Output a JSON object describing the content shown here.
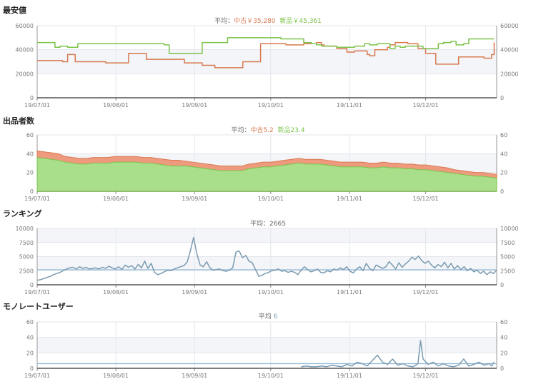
{
  "panels": [
    {
      "id": "price",
      "title": "最安値",
      "avg_label": "平均：",
      "avg_parts": [
        {
          "label": "中古￥35,280",
          "cls": "used"
        },
        {
          "label": "新品￥45,361",
          "cls": "new"
        }
      ]
    },
    {
      "id": "sellers",
      "title": "出品者数",
      "avg_label": "平均：",
      "avg_parts": [
        {
          "label": "中古5.2",
          "cls": "used"
        },
        {
          "label": "新品23.4",
          "cls": "new"
        }
      ]
    },
    {
      "id": "ranking",
      "title": "ランキング",
      "avg_label": "平均：",
      "avg_parts": [
        {
          "label": "2665",
          "cls": "plain"
        }
      ]
    },
    {
      "id": "monorate",
      "title": "モノレートユーザー",
      "avg_label": "平均",
      "avg_parts": [
        {
          "label": "6",
          "cls": "num"
        }
      ]
    }
  ],
  "colors": {
    "used": "#d87a4f",
    "new": "#7cc34a",
    "rank": "#7a9bb0",
    "used_fill": "#ee9a7e",
    "new_fill": "#a9de8a"
  },
  "chart_data": [
    {
      "type": "line",
      "title": "最安値",
      "x_tick_labels": [
        "19/07/01",
        "19/08/01",
        "19/09/01",
        "19/10/01",
        "19/11/01",
        "19/12/01"
      ],
      "x_range": [
        0,
        181
      ],
      "ylim": [
        0,
        60000
      ],
      "yticks": [
        0,
        20000,
        40000,
        60000
      ],
      "series": [
        {
          "name": "中古",
          "color_key": "used",
          "points": [
            [
              0,
              31000
            ],
            [
              10,
              30000
            ],
            [
              12,
              36000
            ],
            [
              15,
              30000
            ],
            [
              27,
              29000
            ],
            [
              35,
              29000
            ],
            [
              36,
              37000
            ],
            [
              42,
              37000
            ],
            [
              43,
              32000
            ],
            [
              54,
              32000
            ],
            [
              58,
              29000
            ],
            [
              62,
              29000
            ],
            [
              65,
              27000
            ],
            [
              70,
              25000
            ],
            [
              80,
              25000
            ],
            [
              81,
              30000
            ],
            [
              87,
              30000
            ],
            [
              88,
              45000
            ],
            [
              95,
              45000
            ],
            [
              98,
              44000
            ],
            [
              105,
              45000
            ],
            [
              110,
              46000
            ],
            [
              112,
              44000
            ],
            [
              113,
              43000
            ],
            [
              118,
              41000
            ],
            [
              121,
              41000
            ],
            [
              122,
              38000
            ],
            [
              124,
              38000
            ],
            [
              125,
              39000
            ],
            [
              128,
              39000
            ],
            [
              130,
              36000
            ],
            [
              131,
              35000
            ],
            [
              133,
              40000
            ],
            [
              136,
              40000
            ],
            [
              138,
              42000
            ],
            [
              139,
              44000
            ],
            [
              141,
              46000
            ],
            [
              146,
              45000
            ],
            [
              150,
              41000
            ],
            [
              152,
              41000
            ],
            [
              153,
              37000
            ],
            [
              156,
              37000
            ],
            [
              157,
              28000
            ],
            [
              163,
              28000
            ],
            [
              166,
              34000
            ],
            [
              175,
              34000
            ],
            [
              176,
              33000
            ],
            [
              178,
              33000
            ],
            [
              179,
              36000
            ],
            [
              180,
              46000
            ]
          ]
        },
        {
          "name": "新品",
          "color_key": "new",
          "points": [
            [
              0,
              46000
            ],
            [
              5,
              46000
            ],
            [
              7,
              42000
            ],
            [
              9,
              43000
            ],
            [
              12,
              42000
            ],
            [
              16,
              45000
            ],
            [
              25,
              45000
            ],
            [
              35,
              45000
            ],
            [
              45,
              45000
            ],
            [
              50,
              44000
            ],
            [
              52,
              37000
            ],
            [
              56,
              37000
            ],
            [
              57,
              37000
            ],
            [
              64,
              37000
            ],
            [
              65,
              46000
            ],
            [
              70,
              46000
            ],
            [
              75,
              50000
            ],
            [
              85,
              50000
            ],
            [
              90,
              50000
            ],
            [
              96,
              49000
            ],
            [
              98,
              49000
            ],
            [
              104,
              49000
            ],
            [
              105,
              46000
            ],
            [
              108,
              45000
            ],
            [
              110,
              44000
            ],
            [
              112,
              43000
            ],
            [
              117,
              43000
            ],
            [
              118,
              42000
            ],
            [
              123,
              42000
            ],
            [
              125,
              43000
            ],
            [
              127,
              43000
            ],
            [
              129,
              45000
            ],
            [
              131,
              44000
            ],
            [
              133,
              44000
            ],
            [
              134,
              45000
            ],
            [
              137,
              45000
            ],
            [
              139,
              41000
            ],
            [
              141,
              43000
            ],
            [
              143,
              42000
            ],
            [
              145,
              43000
            ],
            [
              149,
              43000
            ],
            [
              152,
              41000
            ],
            [
              156,
              41000
            ],
            [
              158,
              45000
            ],
            [
              160,
              46000
            ],
            [
              163,
              47000
            ],
            [
              165,
              44000
            ],
            [
              168,
              45000
            ],
            [
              170,
              49000
            ],
            [
              180,
              49000
            ]
          ]
        }
      ]
    },
    {
      "type": "area",
      "title": "出品者数",
      "x_tick_labels": [
        "19/07/01",
        "19/08/01",
        "19/09/01",
        "19/10/01",
        "19/11/01",
        "19/12/01"
      ],
      "x_range": [
        0,
        181
      ],
      "ylim": [
        0,
        60
      ],
      "yticks": [
        0,
        20,
        40,
        60
      ],
      "stacked": true,
      "series": [
        {
          "name": "新品",
          "color_key": "new",
          "values": [
            36,
            35,
            34,
            33,
            31,
            30,
            29,
            29,
            30,
            30,
            30,
            31,
            31,
            31,
            31,
            30,
            30,
            29,
            28,
            27,
            27,
            27,
            26,
            25,
            24,
            23,
            22,
            22,
            22,
            22,
            24,
            25,
            26,
            26,
            27,
            28,
            29,
            30,
            29,
            29,
            29,
            28,
            27,
            26,
            26,
            26,
            26,
            25,
            25,
            26,
            25,
            25,
            24,
            24,
            23,
            23,
            22,
            21,
            20,
            19,
            18,
            17,
            16,
            16,
            15,
            14
          ]
        },
        {
          "name": "中古",
          "color_key": "used",
          "values": [
            7,
            7,
            7,
            7,
            6,
            6,
            6,
            6,
            6,
            6,
            6,
            6,
            6,
            6,
            6,
            6,
            6,
            6,
            6,
            6,
            6,
            5,
            5,
            5,
            5,
            5,
            5,
            5,
            5,
            5,
            5,
            5,
            5,
            5,
            5,
            5,
            5,
            5,
            5,
            5,
            5,
            5,
            5,
            5,
            5,
            5,
            5,
            5,
            5,
            5,
            5,
            5,
            5,
            5,
            5,
            5,
            5,
            5,
            5,
            4,
            4,
            4,
            4,
            4,
            4,
            4
          ]
        }
      ]
    },
    {
      "type": "line",
      "title": "ランキング",
      "x_tick_labels": [
        "19/07/01",
        "19/08/01",
        "19/09/01",
        "19/10/01",
        "19/11/01",
        "19/12/01"
      ],
      "x_range": [
        0,
        181
      ],
      "ylim": [
        0,
        10000
      ],
      "yticks": [
        0,
        2500,
        5000,
        7500,
        10000
      ],
      "average": 2665,
      "series": [
        {
          "name": "",
          "color_key": "rank",
          "values": [
            800,
            900,
            1100,
            1300,
            1500,
            1800,
            2000,
            2200,
            2500,
            2800,
            3000,
            3100,
            2800,
            3200,
            2900,
            3100,
            2800,
            2900,
            3000,
            2800,
            3100,
            2900,
            3300,
            3000,
            2800,
            3200,
            2700,
            3500,
            3100,
            3400,
            2800,
            3600,
            3000,
            4200,
            2900,
            3800,
            2200,
            1800,
            2000,
            2300,
            2600,
            2500,
            2800,
            3000,
            3200,
            3400,
            4000,
            6000,
            8400,
            5500,
            3500,
            3200,
            4100,
            3000,
            2600,
            2700,
            2800,
            2500,
            2400,
            2600,
            3000,
            5800,
            6000,
            4800,
            5200,
            4200,
            3900,
            2700,
            1500,
            1700,
            2000,
            2200,
            2500,
            2600,
            2800,
            2400,
            2500,
            2200,
            2400,
            2200,
            1800,
            2600,
            3200,
            2700,
            2300,
            2500,
            2800,
            2200,
            2100,
            2500,
            2300,
            2800,
            2600,
            3000,
            2700,
            3200,
            2400,
            2100,
            2800,
            3200,
            2500,
            3800,
            2900,
            2500,
            3500,
            3200,
            2900,
            3200,
            4100,
            3500,
            2800,
            3900,
            3100,
            3700,
            4200,
            4900,
            4500,
            5100,
            4300,
            3800,
            4200,
            3500,
            3000,
            3600,
            3200,
            4000,
            3000,
            3800,
            2800,
            3400,
            2700,
            3200,
            2500,
            2900,
            2300,
            2600,
            2000,
            2400,
            1800,
            2300,
            2000,
            2600
          ]
        }
      ]
    },
    {
      "type": "line",
      "title": "モノレートユーザー",
      "x_tick_labels": [
        "19/07/01",
        "19/08/01",
        "19/09/01",
        "19/10/01",
        "19/11/01",
        "19/12/01"
      ],
      "x_range": [
        0,
        181
      ],
      "ylim": [
        0,
        60
      ],
      "yticks": [
        0,
        20,
        40,
        60
      ],
      "average": 6,
      "series": [
        {
          "name": "",
          "color_key": "rank",
          "points": [
            [
              104,
              2
            ],
            [
              106,
              3
            ],
            [
              108,
              2
            ],
            [
              110,
              2
            ],
            [
              112,
              3
            ],
            [
              114,
              2
            ],
            [
              116,
              4
            ],
            [
              118,
              3
            ],
            [
              120,
              2
            ],
            [
              122,
              5
            ],
            [
              124,
              3
            ],
            [
              126,
              8
            ],
            [
              128,
              6
            ],
            [
              130,
              3
            ],
            [
              132,
              10
            ],
            [
              134,
              17
            ],
            [
              136,
              8
            ],
            [
              138,
              5
            ],
            [
              140,
              12
            ],
            [
              142,
              4
            ],
            [
              144,
              6
            ],
            [
              146,
              3
            ],
            [
              148,
              2
            ],
            [
              150,
              6
            ],
            [
              151,
              36
            ],
            [
              152,
              12
            ],
            [
              154,
              5
            ],
            [
              156,
              8
            ],
            [
              158,
              3
            ],
            [
              160,
              6
            ],
            [
              162,
              3
            ],
            [
              164,
              2
            ],
            [
              166,
              4
            ],
            [
              168,
              12
            ],
            [
              170,
              3
            ],
            [
              172,
              5
            ],
            [
              174,
              8
            ],
            [
              176,
              4
            ],
            [
              178,
              6
            ],
            [
              179,
              3
            ],
            [
              180,
              8
            ]
          ]
        }
      ]
    }
  ]
}
